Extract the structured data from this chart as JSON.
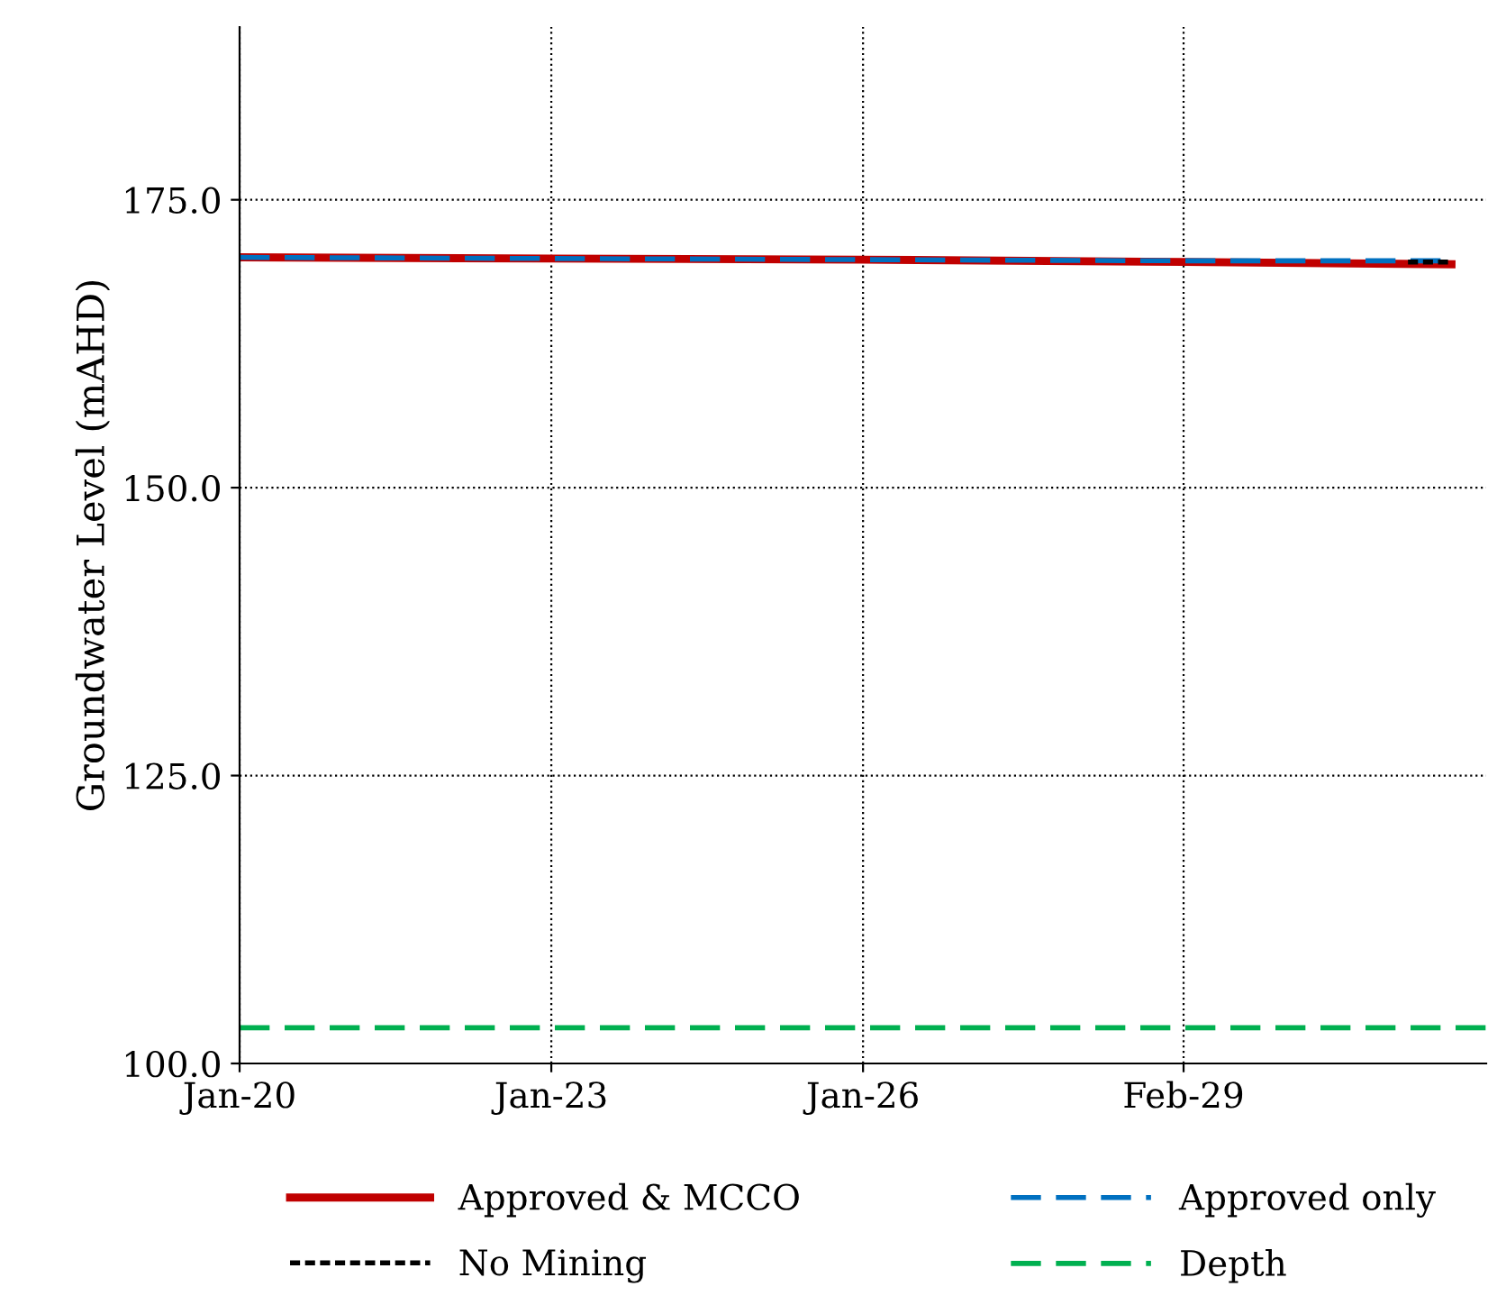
{
  "chart_data": {
    "type": "line",
    "ylabel": "Groundwater Level (mAHD)",
    "xlim": [
      "2020-01-01",
      "2032-01-01"
    ],
    "xticks": [
      {
        "value": "2020-01-01",
        "label": "Jan-20"
      },
      {
        "value": "2023-01-01",
        "label": "Jan-23"
      },
      {
        "value": "2026-01-01",
        "label": "Jan-26"
      },
      {
        "value": "2029-02-01",
        "label": "Feb-29"
      }
    ],
    "ylim": [
      100,
      190
    ],
    "yticks": [
      {
        "value": 100,
        "label": "100.0"
      },
      {
        "value": 125,
        "label": "125.0"
      },
      {
        "value": 150,
        "label": "150.0"
      },
      {
        "value": 175,
        "label": "175.0"
      }
    ],
    "grid": true,
    "legend": "bottom",
    "series": [
      {
        "name": "Approved & MCCO",
        "color": "#c00000",
        "line_style": "solid",
        "x": [
          "2020-01-01",
          "2023-01-01",
          "2026-01-01",
          "2029-02-01",
          "2031-09-01"
        ],
        "values": [
          170.0,
          169.9,
          169.8,
          169.6,
          169.4
        ]
      },
      {
        "name": "Approved only",
        "color": "#0070c0",
        "line_style": "dashed",
        "x": [
          "2020-01-01",
          "2023-01-01",
          "2026-01-01",
          "2029-02-01",
          "2031-08-01"
        ],
        "values": [
          170.0,
          169.9,
          169.8,
          169.7,
          169.7
        ]
      },
      {
        "name": "No Mining",
        "color": "#000000",
        "line_style": "dotted",
        "x": [
          "2031-04-01",
          "2031-09-01"
        ],
        "values": [
          169.6,
          169.6
        ]
      },
      {
        "name": "Depth",
        "color": "#00b050",
        "line_style": "dashed",
        "x": [
          "2020-01-01",
          "2032-01-01"
        ],
        "values": [
          103.1,
          103.1
        ]
      }
    ]
  }
}
